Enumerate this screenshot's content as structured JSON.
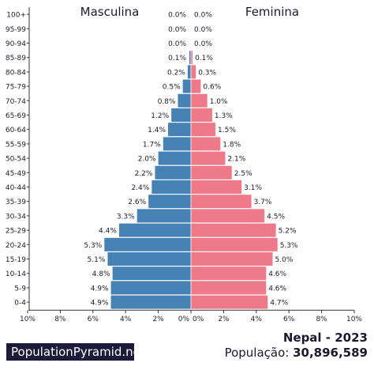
{
  "chart_data": {
    "type": "bar",
    "orientation": "horizontal",
    "categories": [
      "100+",
      "95-99",
      "90-94",
      "85-89",
      "80-84",
      "75-79",
      "70-74",
      "65-69",
      "60-64",
      "55-59",
      "50-54",
      "45-49",
      "40-44",
      "35-39",
      "30-34",
      "25-29",
      "20-24",
      "15-19",
      "10-14",
      "5-9",
      "0-4"
    ],
    "series": [
      {
        "name": "Masculina",
        "color": "#4682b4",
        "values": [
          0.0,
          0.0,
          0.0,
          0.1,
          0.2,
          0.5,
          0.8,
          1.2,
          1.4,
          1.7,
          2.0,
          2.2,
          2.4,
          2.6,
          3.3,
          4.4,
          5.3,
          5.1,
          4.8,
          4.9,
          4.9
        ],
        "labels": [
          "0.0%",
          "0.0%",
          "0.0%",
          "0.1%",
          "0.2%",
          "0.5%",
          "0.8%",
          "1.2%",
          "1.4%",
          "1.7%",
          "2.0%",
          "2.2%",
          "2.4%",
          "2.6%",
          "3.3%",
          "4.4%",
          "5.3%",
          "5.1%",
          "4.8%",
          "4.9%",
          "4.9%"
        ]
      },
      {
        "name": "Feminina",
        "color": "#ee7989",
        "values": [
          0.0,
          0.0,
          0.0,
          0.1,
          0.3,
          0.6,
          1.0,
          1.3,
          1.5,
          1.8,
          2.1,
          2.5,
          3.1,
          3.7,
          4.5,
          5.2,
          5.3,
          5.0,
          4.6,
          4.6,
          4.7
        ],
        "labels": [
          "0.0%",
          "0.0%",
          "0.0%",
          "0.1%",
          "0.3%",
          "0.6%",
          "1.0%",
          "1.3%",
          "1.5%",
          "1.8%",
          "2.1%",
          "2.5%",
          "3.1%",
          "3.7%",
          "4.5%",
          "5.2%",
          "5.3%",
          "5.0%",
          "4.6%",
          "4.6%",
          "4.7%"
        ]
      }
    ],
    "x_ticks_left": [
      "10%",
      "8%",
      "6%",
      "4%",
      "2%",
      "0%"
    ],
    "x_ticks_right": [
      "0%",
      "2%",
      "4%",
      "6%",
      "8%",
      "10%"
    ],
    "xlim": [
      0,
      10
    ],
    "grid": false
  },
  "footer": {
    "brand": "PopulationPyramid.net",
    "country_year": "Nepal - 2023",
    "population_label": "População:",
    "population_value": "30,896,589"
  }
}
